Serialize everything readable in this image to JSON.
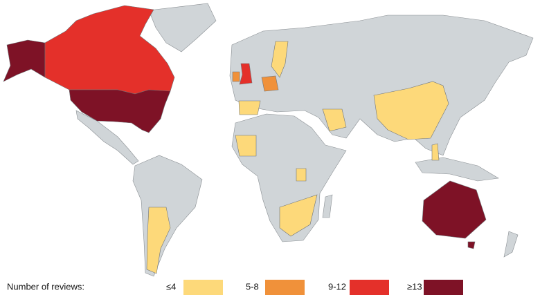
{
  "legend": {
    "title": "Number of reviews:",
    "items": [
      {
        "label": "≤4",
        "color": "#fdd97a"
      },
      {
        "label": "5-8",
        "color": "#f0913a"
      },
      {
        "label": "9-12",
        "color": "#e4302a"
      },
      {
        "label": "≥13",
        "color": "#7e1226"
      }
    ]
  }
}
